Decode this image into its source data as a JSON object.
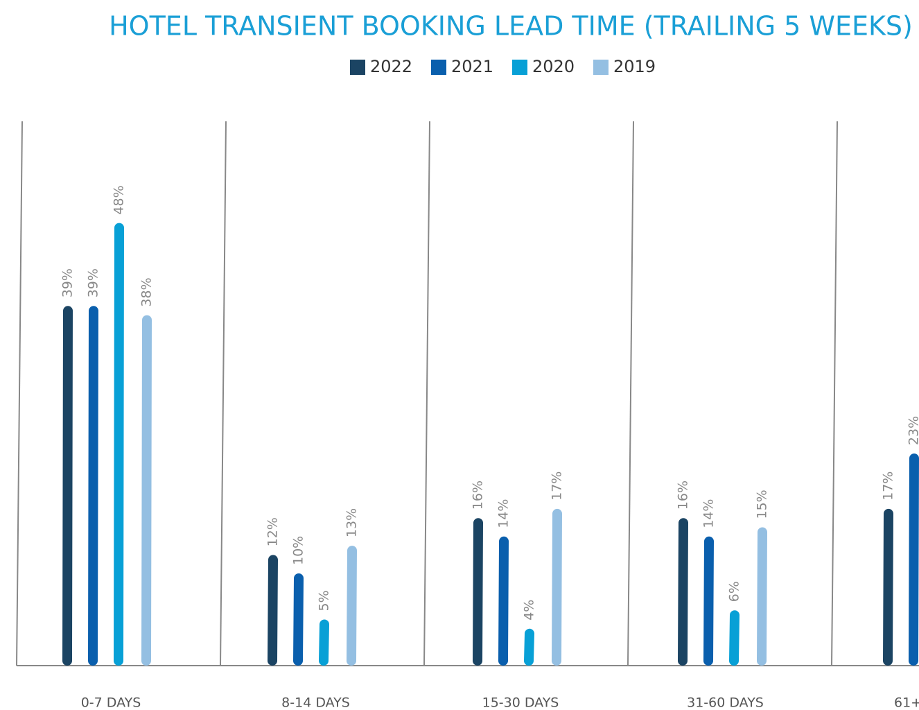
{
  "chart_data": {
    "type": "bar",
    "title": "HOTEL TRANSIENT BOOKING LEAD TIME (TRAILING 5 WEEKS)",
    "categories": [
      "0-7 DAYS",
      "8-14 DAYS",
      "15-30 DAYS",
      "31-60 DAYS",
      "61+"
    ],
    "series": [
      {
        "name": "2022",
        "color": "#1b4463",
        "values": [
          39,
          12,
          16,
          16,
          17
        ],
        "value_labels": [
          "39%",
          "12%",
          "16%",
          "16%",
          "17%"
        ]
      },
      {
        "name": "2021",
        "color": "#0a5fad",
        "values": [
          39,
          10,
          14,
          14,
          23
        ],
        "value_labels": [
          "39%",
          "10%",
          "14%",
          "14%",
          "23%"
        ]
      },
      {
        "name": "2020",
        "color": "#08a0d6",
        "values": [
          48,
          5,
          4,
          6,
          null
        ],
        "value_labels": [
          "48%",
          "5%",
          "4%",
          "6%",
          null
        ]
      },
      {
        "name": "2019",
        "color": "#94bfe2",
        "values": [
          38,
          13,
          17,
          15,
          null
        ],
        "value_labels": [
          "38%",
          "13%",
          "17%",
          "15%",
          null
        ]
      }
    ],
    "legend": "top"
  }
}
